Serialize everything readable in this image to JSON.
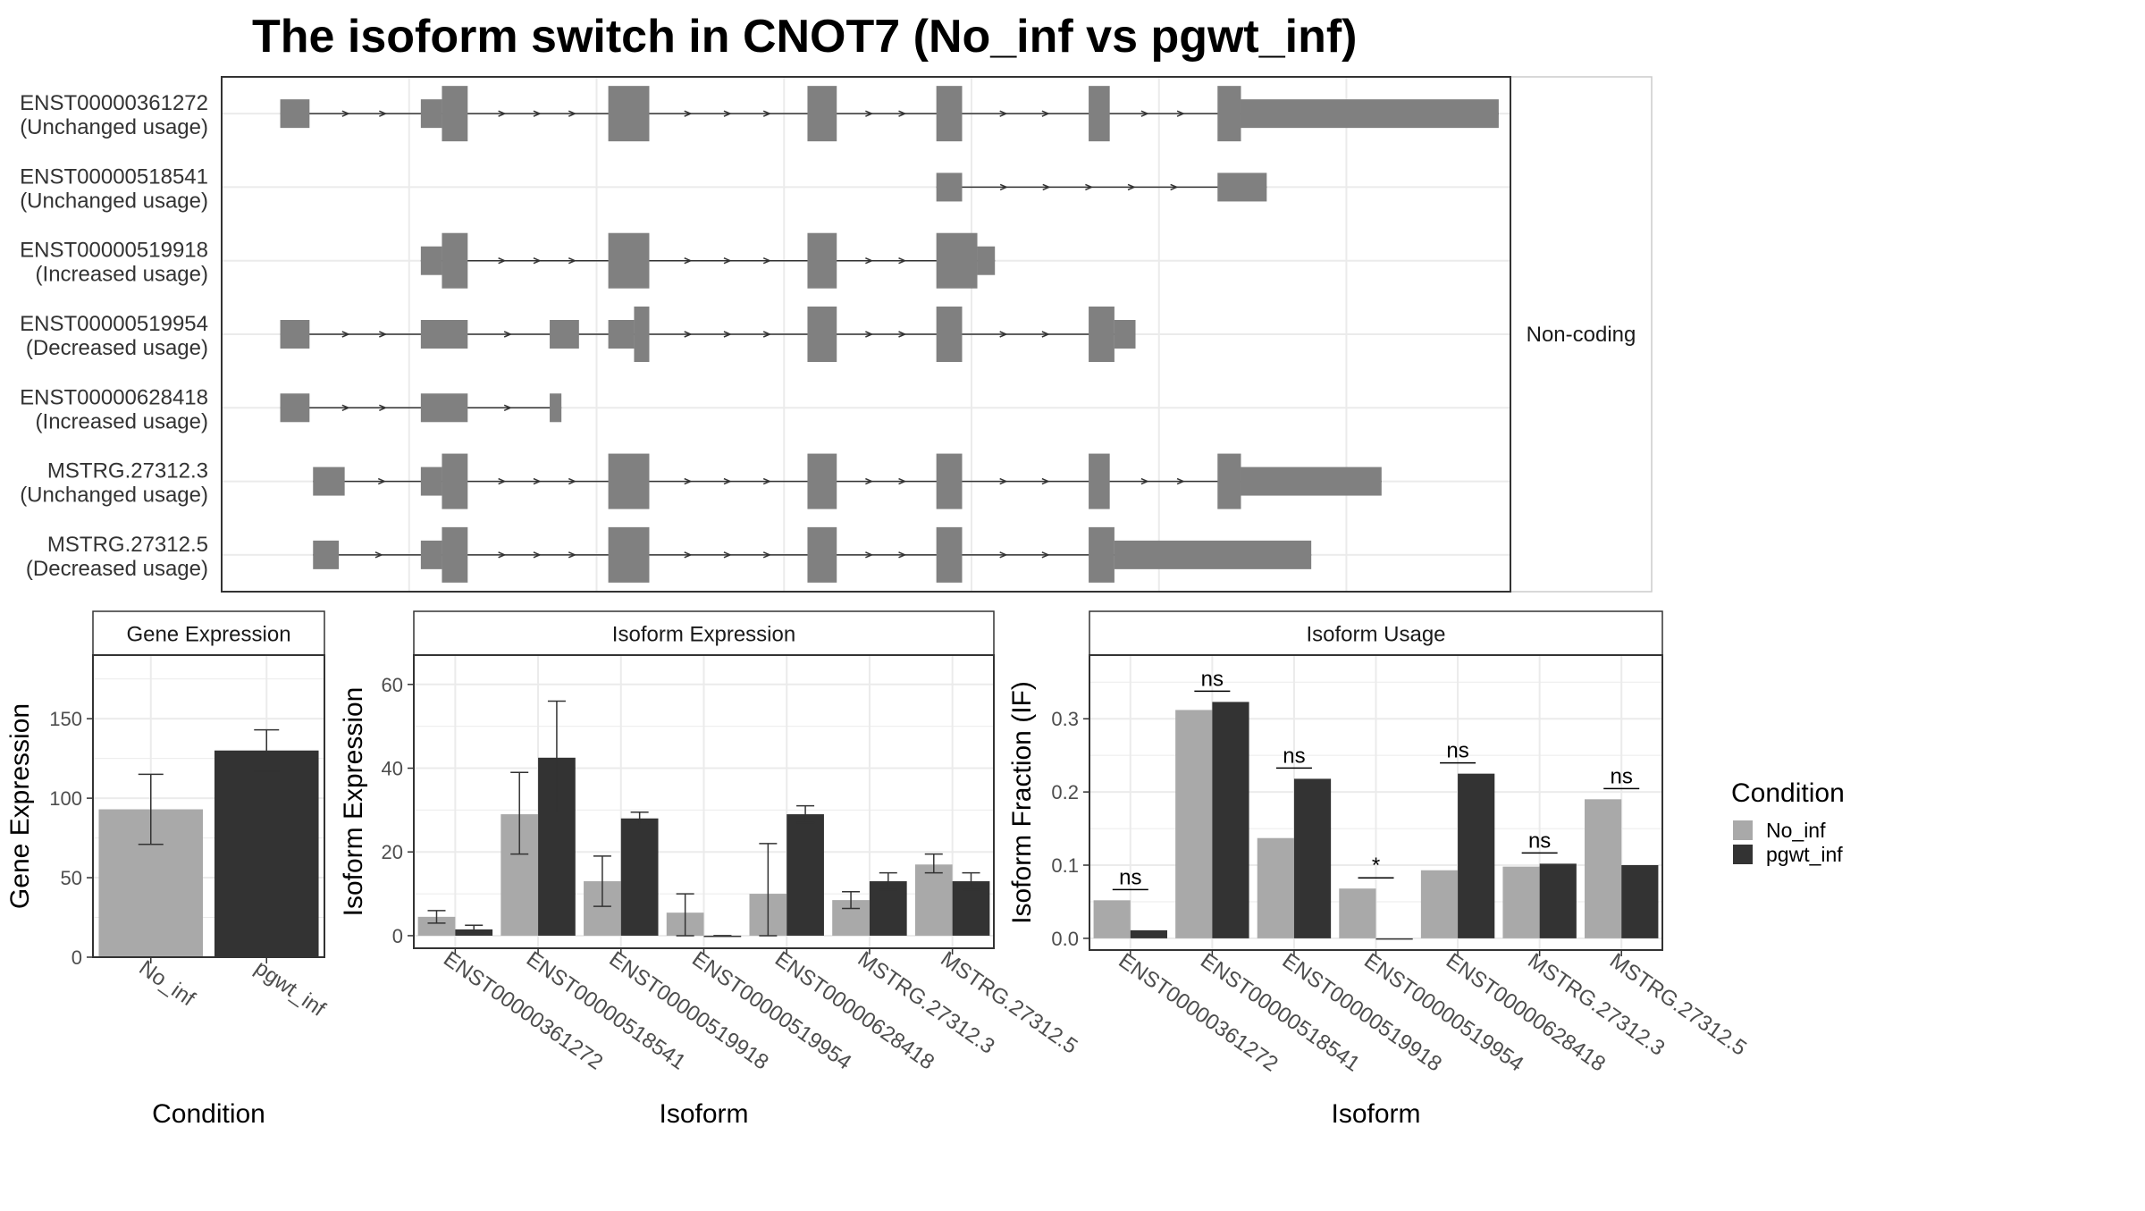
{
  "title": "The isoform switch in CNOT7 (No_inf vs pgwt_inf)",
  "colors": {
    "no_inf": "#a9a9a9",
    "pgwt_inf": "#333333",
    "exon": "#808080",
    "grid": "#ebebeb",
    "panel_border": "#333333",
    "strip_fill": "#ffffff",
    "text": "#333333"
  },
  "chart_data": [
    {
      "type": "gene-structure",
      "name": "transcript-structure",
      "facet_label": "Non-coding",
      "x_range": [
        0,
        1100
      ],
      "transcripts": [
        {
          "id": "ENST00000361272",
          "usage": "(Unchanged usage)",
          "exons": [
            [
              50,
              75,
              "n"
            ],
            [
              170,
              188,
              "n"
            ],
            [
              188,
              210,
              "w"
            ],
            [
              330,
              365,
              "w"
            ],
            [
              500,
              525,
              "w"
            ],
            [
              610,
              632,
              "w"
            ],
            [
              740,
              758,
              "w"
            ],
            [
              850,
              870,
              "w"
            ],
            [
              870,
              1090,
              "n"
            ]
          ]
        },
        {
          "id": "ENST00000518541",
          "usage": "(Unchanged usage)",
          "exons": [
            [
              610,
              632,
              "n"
            ],
            [
              850,
              892,
              "n"
            ]
          ]
        },
        {
          "id": "ENST00000519918",
          "usage": "(Increased usage)",
          "exons": [
            [
              170,
              188,
              "n"
            ],
            [
              188,
              210,
              "w"
            ],
            [
              330,
              365,
              "w"
            ],
            [
              500,
              525,
              "w"
            ],
            [
              610,
              645,
              "w"
            ],
            [
              645,
              660,
              "n"
            ]
          ]
        },
        {
          "id": "ENST00000519954",
          "usage": "(Decreased usage)",
          "exons": [
            [
              50,
              75,
              "n"
            ],
            [
              170,
              210,
              "n"
            ],
            [
              280,
              305,
              "n"
            ],
            [
              330,
              352,
              "n"
            ],
            [
              352,
              365,
              "w"
            ],
            [
              500,
              525,
              "w"
            ],
            [
              610,
              632,
              "w"
            ],
            [
              740,
              762,
              "w"
            ],
            [
              762,
              780,
              "n"
            ]
          ]
        },
        {
          "id": "ENST00000628418",
          "usage": "(Increased usage)",
          "exons": [
            [
              50,
              75,
              "n"
            ],
            [
              170,
              210,
              "n"
            ],
            [
              280,
              290,
              "n"
            ]
          ]
        },
        {
          "id": "MSTRG.27312.3",
          "usage": "(Unchanged usage)",
          "exons": [
            [
              78,
              105,
              "n"
            ],
            [
              170,
              188,
              "n"
            ],
            [
              188,
              210,
              "w"
            ],
            [
              330,
              365,
              "w"
            ],
            [
              500,
              525,
              "w"
            ],
            [
              610,
              632,
              "w"
            ],
            [
              740,
              758,
              "w"
            ],
            [
              850,
              870,
              "w"
            ],
            [
              870,
              990,
              "n"
            ]
          ]
        },
        {
          "id": "MSTRG.27312.5",
          "usage": "(Decreased usage)",
          "exons": [
            [
              78,
              100,
              "n"
            ],
            [
              170,
              188,
              "n"
            ],
            [
              188,
              210,
              "w"
            ],
            [
              330,
              365,
              "w"
            ],
            [
              500,
              525,
              "w"
            ],
            [
              610,
              632,
              "w"
            ],
            [
              740,
              762,
              "w"
            ],
            [
              762,
              930,
              "n"
            ]
          ]
        }
      ]
    },
    {
      "type": "bar",
      "name": "gene-expression",
      "title": "Gene Expression",
      "xlabel": "Condition",
      "ylabel": "Gene Expression",
      "categories": [
        "No_inf",
        "pgwt_inf"
      ],
      "values": [
        93,
        130
      ],
      "errors": [
        [
          71,
          115
        ],
        [
          117,
          143
        ]
      ],
      "ylim": [
        0,
        190
      ],
      "yticks": [
        0,
        50,
        100,
        150
      ]
    },
    {
      "type": "bar",
      "name": "isoform-expression",
      "title": "Isoform Expression",
      "xlabel": "Isoform",
      "ylabel": "Isoform Expression",
      "categories": [
        "ENST00000361272",
        "ENST00000518541",
        "ENST00000519918",
        "ENST00000519954",
        "ENST00000628418",
        "MSTRG.27312.3",
        "MSTRG.27312.5"
      ],
      "series": [
        {
          "name": "No_inf",
          "values": [
            4.5,
            29,
            13,
            5.5,
            10,
            8.5,
            17
          ],
          "errors": [
            [
              3,
              6
            ],
            [
              19.5,
              39
            ],
            [
              7,
              19
            ],
            [
              0,
              10
            ],
            [
              0,
              22
            ],
            [
              6.5,
              10.5
            ],
            [
              15,
              19.5
            ]
          ]
        },
        {
          "name": "pgwt_inf",
          "values": [
            1.5,
            42.5,
            28,
            0,
            29,
            13,
            13
          ],
          "errors": [
            [
              0.5,
              2.5
            ],
            [
              29.5,
              56
            ],
            [
              26.5,
              29.5
            ],
            [
              0,
              0
            ],
            [
              27,
              31
            ],
            [
              11,
              15
            ],
            [
              11,
              15
            ]
          ]
        }
      ],
      "ylim": [
        -3,
        67
      ],
      "yticks": [
        0,
        20,
        40,
        60
      ]
    },
    {
      "type": "bar",
      "name": "isoform-usage",
      "title": "Isoform Usage",
      "xlabel": "Isoform",
      "ylabel": "Isoform Fraction (IF)",
      "categories": [
        "ENST00000361272",
        "ENST00000518541",
        "ENST00000519918",
        "ENST00000519954",
        "ENST00000628418",
        "MSTRG.27312.3",
        "MSTRG.27312.5"
      ],
      "series": [
        {
          "name": "No_inf",
          "values": [
            0.052,
            0.312,
            0.137,
            0.068,
            0.093,
            0.098,
            0.19
          ]
        },
        {
          "name": "pgwt_inf",
          "values": [
            0.011,
            0.323,
            0.218,
            0,
            0.225,
            0.102,
            0.1
          ]
        }
      ],
      "significance": [
        "ns",
        "ns",
        "ns",
        "*",
        "ns",
        "ns",
        "ns"
      ],
      "ylim": [
        -0.016,
        0.387
      ],
      "yticks": [
        0.0,
        0.1,
        0.2,
        0.3
      ],
      "ytick_labels": [
        "0.0",
        "0.1",
        "0.2",
        "0.3"
      ]
    }
  ],
  "legend": {
    "title": "Condition",
    "items": [
      {
        "label": "No_inf",
        "color": "#a9a9a9"
      },
      {
        "label": "pgwt_inf",
        "color": "#333333"
      }
    ]
  }
}
